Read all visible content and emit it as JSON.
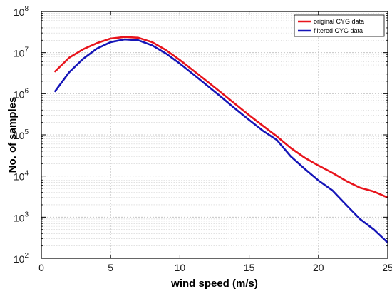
{
  "chart_data": {
    "type": "line",
    "xlabel": "wind speed (m/s)",
    "ylabel": "No. of samples",
    "xlim": [
      0,
      25
    ],
    "ylim": [
      100,
      100000000
    ],
    "yscale": "log",
    "grid": "on (major and minor)",
    "legend_position": "top-right",
    "x_ticks": [
      "0",
      "5",
      "10",
      "15",
      "20",
      "25"
    ],
    "y_ticks": [
      {
        "base": "10",
        "exp": "2",
        "value": 100
      },
      {
        "base": "10",
        "exp": "3",
        "value": 1000
      },
      {
        "base": "10",
        "exp": "4",
        "value": 10000
      },
      {
        "base": "10",
        "exp": "5",
        "value": 100000
      },
      {
        "base": "10",
        "exp": "6",
        "value": 1000000
      },
      {
        "base": "10",
        "exp": "7",
        "value": 10000000
      },
      {
        "base": "10",
        "exp": "8",
        "value": 100000000
      }
    ],
    "series": [
      {
        "name": "original CYG data",
        "color": "#e8141c",
        "x": [
          1,
          2,
          3,
          4,
          5,
          6,
          7,
          8,
          9,
          10,
          11,
          12,
          13,
          14,
          15,
          16,
          17,
          18,
          19,
          20,
          21,
          22,
          23,
          24,
          25
        ],
        "y": [
          3500000,
          7500000,
          12000000,
          17000000,
          22000000,
          24000000,
          23000000,
          18000000,
          11500000,
          6600000,
          3600000,
          1950000,
          1050000,
          560000,
          300000,
          165000,
          92000,
          48000,
          28000,
          18000,
          12000,
          7600,
          5200,
          4200,
          3000
        ]
      },
      {
        "name": "filtered CYG data",
        "color": "#1515b8",
        "x": [
          1,
          2,
          3,
          4,
          5,
          6,
          7,
          8,
          9,
          10,
          11,
          12,
          13,
          14,
          15,
          16,
          17,
          18,
          19,
          20,
          21,
          22,
          23,
          24,
          25
        ],
        "y": [
          1150000,
          3300000,
          7000000,
          12500000,
          18000000,
          21000000,
          20000000,
          15000000,
          9500000,
          5400000,
          2900000,
          1550000,
          820000,
          430000,
          230000,
          125000,
          75000,
          30000,
          15000,
          7800,
          4500,
          2000,
          900,
          500,
          240
        ]
      }
    ]
  }
}
